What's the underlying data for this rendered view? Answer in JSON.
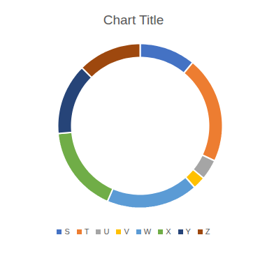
{
  "chart_data": {
    "type": "donut",
    "title": "Chart Title",
    "categories": [
      "S",
      "T",
      "U",
      "V",
      "W",
      "X",
      "Y",
      "Z"
    ],
    "values": [
      11,
      21,
      4,
      2.5,
      18,
      17,
      14,
      12.5
    ],
    "colors": [
      "#4472c4",
      "#ed7d31",
      "#a5a5a5",
      "#ffc000",
      "#5b9bd5",
      "#70ad47",
      "#264478",
      "#9e480e"
    ],
    "legend": "bottom"
  }
}
